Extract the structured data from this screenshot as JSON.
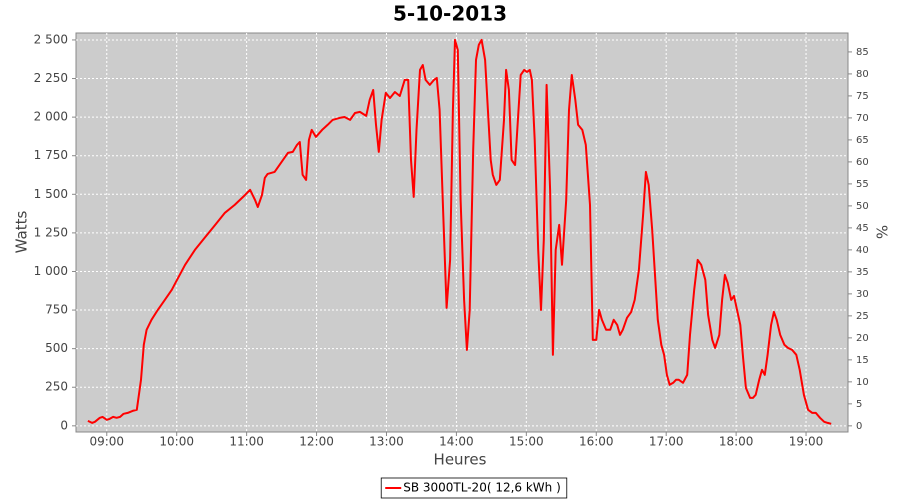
{
  "chart_data": {
    "type": "line",
    "title": "5-10-2013",
    "x_label": "Heures",
    "y_label": "Watts",
    "y2_label": "%",
    "xlim": [
      8.56,
      19.6
    ],
    "xticks": [
      {
        "value": 9,
        "label": "09:00"
      },
      {
        "value": 10,
        "label": "10:00"
      },
      {
        "value": 11,
        "label": "11:00"
      },
      {
        "value": 12,
        "label": "12:00"
      },
      {
        "value": 13,
        "label": "13:00"
      },
      {
        "value": 14,
        "label": "14:00"
      },
      {
        "value": 15,
        "label": "15:00"
      },
      {
        "value": 16,
        "label": "16:00"
      },
      {
        "value": 17,
        "label": "17:00"
      },
      {
        "value": 18,
        "label": "18:00"
      },
      {
        "value": 19,
        "label": "19:00"
      }
    ],
    "ylim": [
      -40,
      2545
    ],
    "yticks": [
      0,
      250,
      500,
      750,
      {
        "value": 1000,
        "label": "1 000"
      },
      {
        "value": 1250,
        "label": "1 250"
      },
      {
        "value": 1500,
        "label": "1 500"
      },
      {
        "value": 1750,
        "label": "1 750"
      },
      {
        "value": 2000,
        "label": "2 000"
      },
      {
        "value": 2250,
        "label": "2 250"
      },
      {
        "value": 2500,
        "label": "2 500"
      }
    ],
    "y2lim": [
      -1.4,
      89.3
    ],
    "y2ticks": [
      0,
      5,
      10,
      15,
      20,
      25,
      30,
      35,
      40,
      45,
      50,
      55,
      60,
      65,
      70,
      75,
      80,
      85
    ],
    "grid": true,
    "plot_background": "#cccccc",
    "legend": "bottom",
    "x": [
      8.73,
      8.79,
      8.83,
      8.9,
      8.94,
      9.0,
      9.04,
      9.09,
      9.14,
      9.19,
      9.24,
      9.3,
      9.37,
      9.43,
      9.49,
      9.53,
      9.57,
      9.64,
      9.73,
      9.83,
      9.93,
      9.99,
      10.12,
      10.26,
      10.4,
      10.55,
      10.69,
      10.83,
      10.95,
      11.05,
      11.12,
      11.16,
      11.22,
      11.26,
      11.3,
      11.4,
      11.52,
      11.59,
      11.66,
      11.72,
      11.76,
      11.8,
      11.85,
      11.89,
      11.93,
      11.99,
      12.08,
      12.16,
      12.23,
      12.33,
      12.4,
      12.48,
      12.55,
      12.62,
      12.71,
      12.76,
      12.81,
      12.85,
      12.89,
      12.93,
      12.99,
      13.05,
      13.12,
      13.19,
      13.26,
      13.31,
      13.35,
      13.39,
      13.43,
      13.48,
      13.52,
      13.56,
      13.62,
      13.68,
      13.72,
      13.76,
      13.82,
      13.86,
      13.91,
      13.95,
      13.98,
      14.02,
      14.06,
      14.11,
      14.15,
      14.19,
      14.24,
      14.28,
      14.32,
      14.36,
      14.41,
      14.45,
      14.49,
      14.52,
      14.57,
      14.62,
      14.68,
      14.71,
      14.75,
      14.79,
      14.84,
      14.88,
      14.92,
      14.97,
      15.01,
      15.05,
      15.08,
      15.12,
      15.17,
      15.21,
      15.25,
      15.29,
      15.34,
      15.38,
      15.42,
      15.47,
      15.51,
      15.57,
      15.61,
      15.65,
      15.7,
      15.74,
      15.8,
      15.85,
      15.91,
      15.95,
      16.0,
      16.04,
      16.08,
      16.14,
      16.2,
      16.25,
      16.3,
      16.34,
      16.38,
      16.44,
      16.5,
      16.55,
      16.61,
      16.67,
      16.71,
      16.75,
      16.8,
      16.84,
      16.88,
      16.93,
      16.97,
      17.01,
      17.05,
      17.1,
      17.14,
      17.18,
      17.24,
      17.3,
      17.34,
      17.4,
      17.45,
      17.5,
      17.56,
      17.6,
      17.66,
      17.7,
      17.76,
      17.8,
      17.84,
      17.88,
      17.93,
      17.97,
      18.06,
      18.1,
      18.14,
      18.2,
      18.24,
      18.28,
      18.33,
      18.37,
      18.41,
      18.45,
      18.5,
      18.54,
      18.58,
      18.63,
      18.69,
      18.74,
      18.8,
      18.86,
      18.91,
      18.97,
      19.03,
      19.09,
      19.14,
      19.2,
      19.26,
      19.31,
      19.36
    ],
    "series": [
      {
        "name": "SB 3000TL-20( 12,6 kWh )",
        "color": "#ff0000",
        "values": [
          32,
          19,
          26,
          52,
          58,
          39,
          45,
          58,
          52,
          58,
          78,
          84,
          97,
          104,
          298,
          525,
          622,
          687,
          751,
          816,
          881,
          933,
          1043,
          1140,
          1218,
          1302,
          1380,
          1431,
          1483,
          1529,
          1464,
          1418,
          1496,
          1606,
          1632,
          1645,
          1723,
          1768,
          1775,
          1820,
          1839,
          1626,
          1593,
          1852,
          1917,
          1872,
          1917,
          1950,
          1982,
          1995,
          2001,
          1982,
          2027,
          2034,
          2008,
          2112,
          2176,
          1950,
          1775,
          1982,
          2157,
          2124,
          2163,
          2137,
          2241,
          2241,
          1723,
          1483,
          1917,
          2306,
          2338,
          2241,
          2209,
          2241,
          2254,
          2047,
          1269,
          764,
          1075,
          2047,
          2500,
          2435,
          1464,
          816,
          492,
          751,
          1788,
          2371,
          2468,
          2500,
          2371,
          2047,
          1723,
          1626,
          1561,
          1593,
          1982,
          2306,
          2176,
          1723,
          1690,
          1982,
          2273,
          2306,
          2293,
          2306,
          2241,
          1852,
          1140,
          751,
          1205,
          2209,
          1529,
          460,
          1140,
          1302,
          1043,
          1464,
          2047,
          2273,
          2112,
          1950,
          1917,
          1820,
          1431,
          557,
          557,
          751,
          687,
          622,
          622,
          687,
          654,
          589,
          622,
          700,
          738,
          816,
          1010,
          1367,
          1645,
          1561,
          1269,
          978,
          687,
          525,
          460,
          330,
          266,
          279,
          298,
          298,
          279,
          330,
          589,
          881,
          1075,
          1043,
          946,
          719,
          557,
          505,
          589,
          816,
          978,
          926,
          816,
          842,
          654,
          440,
          246,
          181,
          181,
          201,
          298,
          363,
          330,
          460,
          654,
          738,
          687,
          589,
          525,
          505,
          492,
          460,
          363,
          201,
          104,
          84,
          84,
          52,
          26,
          19,
          13
        ]
      }
    ]
  }
}
